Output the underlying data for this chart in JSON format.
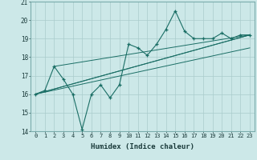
{
  "xlabel": "Humidex (Indice chaleur)",
  "ylabel": "",
  "bg_color": "#cce8e8",
  "grid_color": "#aacccc",
  "line_color": "#1a6e65",
  "xlim": [
    -0.5,
    23.5
  ],
  "ylim": [
    14,
    21
  ],
  "xticks": [
    0,
    1,
    2,
    3,
    4,
    5,
    6,
    7,
    8,
    9,
    10,
    11,
    12,
    13,
    14,
    15,
    16,
    17,
    18,
    19,
    20,
    21,
    22,
    23
  ],
  "yticks": [
    14,
    15,
    16,
    17,
    18,
    19,
    20,
    21
  ],
  "main_line_x": [
    0,
    1,
    2,
    3,
    4,
    5,
    6,
    7,
    8,
    9,
    10,
    11,
    12,
    13,
    14,
    15,
    16,
    17,
    18,
    19,
    20,
    21,
    22,
    23
  ],
  "main_line_y": [
    16.0,
    16.2,
    17.5,
    16.8,
    16.0,
    14.1,
    16.0,
    16.5,
    15.8,
    16.5,
    18.7,
    18.5,
    18.1,
    18.7,
    19.5,
    20.5,
    19.4,
    19.0,
    19.0,
    19.0,
    19.3,
    19.0,
    19.2,
    19.2
  ],
  "trend_line1_x": [
    0,
    23
  ],
  "trend_line1_y": [
    16.0,
    19.2
  ],
  "trend_line2_x": [
    0,
    23
  ],
  "trend_line2_y": [
    16.0,
    19.2
  ],
  "trend_line3_x": [
    2,
    23
  ],
  "trend_line3_y": [
    17.5,
    19.2
  ],
  "trend_line4_x": [
    0,
    23
  ],
  "trend_line4_y": [
    16.0,
    18.5
  ]
}
